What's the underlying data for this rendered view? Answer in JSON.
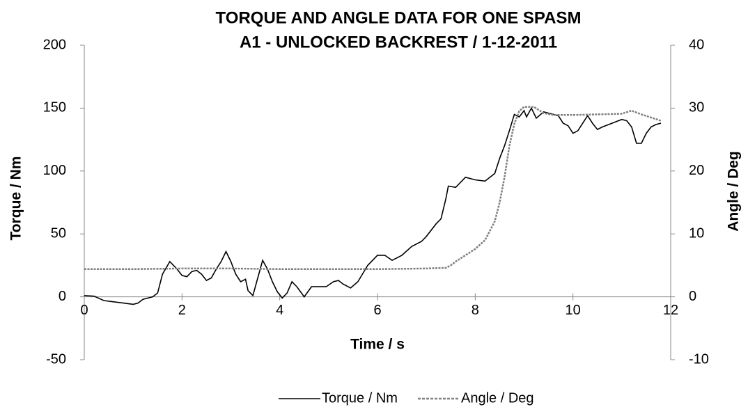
{
  "chart_data": {
    "type": "line",
    "title": [
      "TORQUE AND ANGLE DATA FOR ONE SPASM",
      "A1 - UNLOCKED BACKREST / 1-12-2011"
    ],
    "x_label": "Time / s",
    "y_label": "Torque / Nm",
    "y2_label": "Angle / Deg",
    "xlim": [
      0,
      12
    ],
    "xticks": [
      0,
      2,
      4,
      6,
      8,
      10,
      12
    ],
    "ylim": [
      -50,
      200
    ],
    "yticks": [
      -50,
      0,
      50,
      100,
      150,
      200
    ],
    "y2lim": [
      -10,
      40
    ],
    "y2ticks": [
      -10,
      0,
      10,
      20,
      30,
      40
    ],
    "legend": "bottom",
    "series": [
      {
        "name": "Torque / Nm",
        "color": "#000000",
        "dash": false,
        "x": [
          0,
          0.2,
          0.4,
          0.6,
          0.8,
          1.0,
          1.1,
          1.2,
          1.4,
          1.5,
          1.6,
          1.75,
          1.9,
          2.0,
          2.1,
          2.2,
          2.3,
          2.4,
          2.5,
          2.6,
          2.7,
          2.8,
          2.9,
          3.0,
          3.1,
          3.2,
          3.3,
          3.35,
          3.45,
          3.55,
          3.65,
          3.75,
          3.85,
          3.95,
          4.05,
          4.15,
          4.25,
          4.35,
          4.5,
          4.65,
          4.8,
          4.95,
          5.1,
          5.2,
          5.3,
          5.45,
          5.6,
          5.8,
          6.0,
          6.15,
          6.3,
          6.5,
          6.7,
          6.9,
          7.0,
          7.2,
          7.3,
          7.4,
          7.45,
          7.6,
          7.8,
          8.0,
          8.2,
          8.4,
          8.5,
          8.6,
          8.7,
          8.8,
          8.9,
          9.0,
          9.05,
          9.15,
          9.25,
          9.4,
          9.5,
          9.6,
          9.7,
          9.8,
          9.9,
          10.0,
          10.1,
          10.2,
          10.3,
          10.4,
          10.5,
          10.6,
          10.8,
          11.0,
          11.1,
          11.2,
          11.3,
          11.4,
          11.5,
          11.6,
          11.7,
          11.8
        ],
        "values": [
          1,
          0.5,
          -3,
          -4,
          -5,
          -6,
          -5,
          -2,
          0,
          3,
          18,
          28,
          22,
          17,
          16,
          20,
          21,
          18,
          13,
          15,
          22,
          28,
          36,
          28,
          18,
          12,
          14,
          5,
          1,
          15,
          29,
          22,
          12,
          4,
          -1,
          3,
          12,
          8,
          0,
          8,
          8,
          8,
          12,
          13,
          10,
          7,
          12,
          25,
          33,
          33,
          29,
          33,
          40,
          44,
          48,
          58,
          62,
          78,
          88,
          87,
          95,
          93,
          92,
          98,
          110,
          120,
          132,
          145,
          143,
          148,
          143,
          150,
          142,
          147,
          146,
          145,
          144,
          138,
          136,
          130,
          132,
          138,
          144,
          138,
          133,
          135,
          138,
          141,
          140,
          135,
          122,
          122,
          130,
          135,
          137,
          138
        ]
      },
      {
        "name": "Angle / Deg",
        "color": "#808080",
        "dash": true,
        "axis": "y2",
        "x": [
          0,
          1,
          2,
          3,
          4,
          5,
          6,
          7,
          7.4,
          7.5,
          7.6,
          7.8,
          8.0,
          8.2,
          8.4,
          8.5,
          8.6,
          8.7,
          8.8,
          8.9,
          9.0,
          9.2,
          9.4,
          9.6,
          10.0,
          10.5,
          11.0,
          11.2,
          11.4,
          11.8
        ],
        "values": [
          4.4,
          4.4,
          4.5,
          4.5,
          4.4,
          4.4,
          4.4,
          4.5,
          4.6,
          5.0,
          5.6,
          6.6,
          7.6,
          9.0,
          12,
          15,
          19,
          24,
          27.5,
          29.5,
          30.2,
          30.2,
          29.2,
          28.9,
          28.9,
          29.0,
          29.1,
          29.6,
          29.0,
          28.0
        ]
      }
    ]
  }
}
